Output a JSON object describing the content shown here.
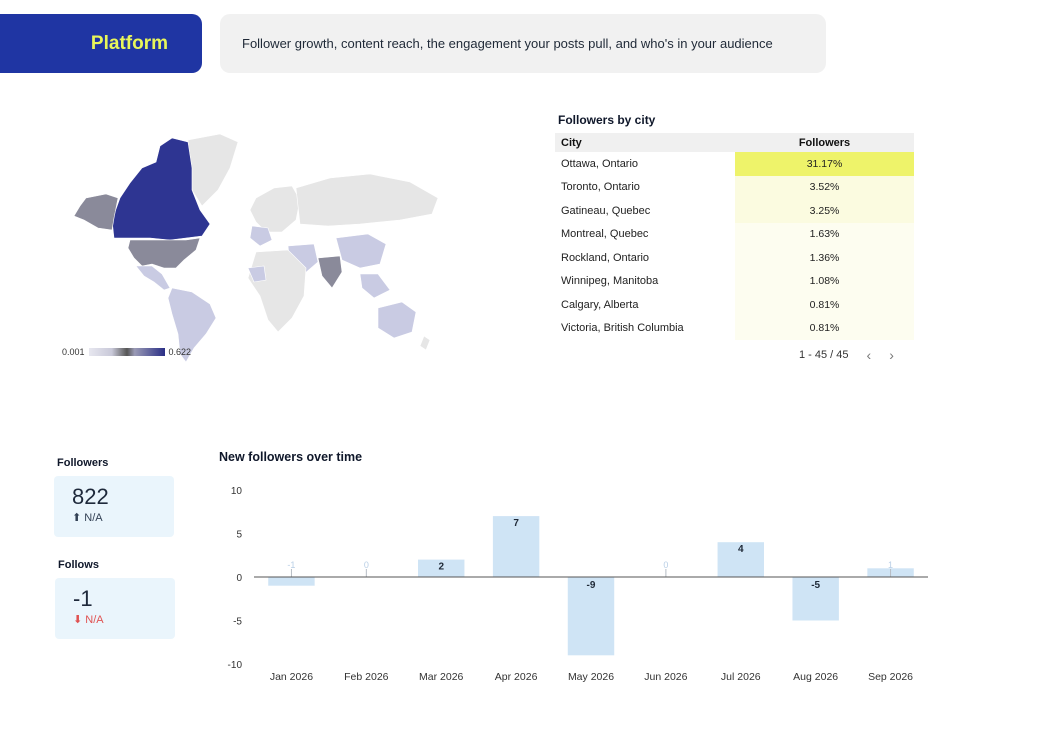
{
  "header": {
    "platform_label": "Platform",
    "subtitle": "Follower growth, content reach, the engagement your posts pull, and who's in your audience"
  },
  "map": {
    "legend_min": "0.001",
    "legend_max": "0.622",
    "colors": {
      "high": "#2e3592",
      "mid": "#8a8a9a",
      "low": "#c9cbe3",
      "none": "#e6e6e6"
    }
  },
  "cities": {
    "title": "Followers by city",
    "columns": [
      "City",
      "Followers"
    ],
    "rows": [
      {
        "city": "Ottawa, Ontario",
        "followers": "31.17%",
        "pct": 31.17
      },
      {
        "city": "Toronto, Ontario",
        "followers": "3.52%",
        "pct": 3.52
      },
      {
        "city": "Gatineau, Quebec",
        "followers": "3.25%",
        "pct": 3.25
      },
      {
        "city": "Montreal, Quebec",
        "followers": "1.63%",
        "pct": 1.63
      },
      {
        "city": "Rockland, Ontario",
        "followers": "1.36%",
        "pct": 1.36
      },
      {
        "city": "Winnipeg, Manitoba",
        "followers": "1.08%",
        "pct": 1.08
      },
      {
        "city": "Calgary, Alberta",
        "followers": "0.81%",
        "pct": 0.81
      },
      {
        "city": "Victoria, British Columbia",
        "followers": "0.81%",
        "pct": 0.81
      }
    ],
    "pagination": "1 - 45 / 45"
  },
  "kpis": {
    "followers": {
      "label": "Followers",
      "value": "822",
      "delta": "N/A"
    },
    "follows": {
      "label": "Follows",
      "value": "-1",
      "delta": "N/A"
    }
  },
  "chart_data": {
    "type": "bar",
    "title": "New followers over time",
    "categories": [
      "Jan 2026",
      "Feb 2026",
      "Mar 2026",
      "Apr 2026",
      "May 2026",
      "Jun 2026",
      "Jul 2026",
      "Aug 2026",
      "Sep 2026"
    ],
    "values": [
      -1,
      0,
      2,
      7,
      -9,
      0,
      4,
      -5,
      1
    ],
    "ylim": [
      -10,
      10
    ],
    "yticks": [
      10,
      5,
      0,
      -5,
      -10
    ],
    "bar_color": "#cfe4f5",
    "xlabel": "",
    "ylabel": ""
  }
}
